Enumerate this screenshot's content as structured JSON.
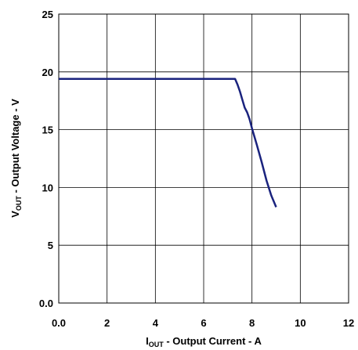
{
  "chart_data": {
    "type": "line",
    "title": "",
    "xlabel": {
      "main": "I",
      "sub": "OUT",
      "rest": " - Output Current - A"
    },
    "ylabel": {
      "main": "V",
      "sub": "OUT",
      "rest": " - Output Voltage - V"
    },
    "xlim": [
      0,
      12
    ],
    "ylim": [
      0,
      25
    ],
    "x_ticks": [
      "0.0",
      "2",
      "4",
      "6",
      "8",
      "10",
      "12"
    ],
    "y_ticks": [
      "0.0",
      "5",
      "10",
      "15",
      "20",
      "25"
    ],
    "grid": true,
    "line_color": "#1a237e",
    "series": [
      {
        "x": [
          0.0,
          1.0,
          2.0,
          3.0,
          4.0,
          5.0,
          6.0,
          7.0,
          7.3,
          7.4,
          7.5,
          7.6,
          7.7,
          7.8,
          7.9,
          8.0,
          8.2,
          8.4,
          8.6,
          8.8,
          9.0
        ],
        "y": [
          19.4,
          19.4,
          19.4,
          19.4,
          19.4,
          19.4,
          19.4,
          19.4,
          19.4,
          18.9,
          18.3,
          17.6,
          16.9,
          16.5,
          15.9,
          15.1,
          13.7,
          12.2,
          10.6,
          9.3,
          8.3
        ]
      }
    ]
  }
}
